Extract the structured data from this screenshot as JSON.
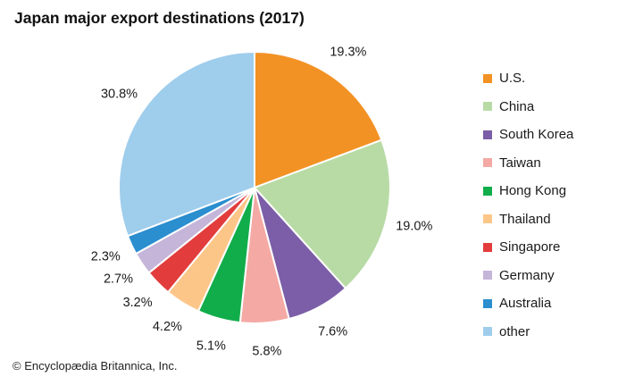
{
  "chart_data": {
    "type": "pie",
    "title": "Japan major export destinations (2017)",
    "categories": [
      "U.S.",
      "China",
      "South Korea",
      "Taiwan",
      "Hong Kong",
      "Thailand",
      "Singapore",
      "Germany",
      "Australia",
      "other"
    ],
    "values": [
      19.3,
      19.0,
      7.6,
      5.8,
      5.1,
      4.2,
      3.2,
      2.7,
      2.3,
      30.8
    ],
    "value_labels": [
      "19.3%",
      "19.0%",
      "7.6%",
      "5.8%",
      "5.1%",
      "4.2%",
      "3.2%",
      "2.7%",
      "2.3%",
      "30.8%"
    ],
    "colors": [
      "#f39224",
      "#b8dba5",
      "#7b5ea7",
      "#f4a9a4",
      "#12ad4b",
      "#fdc689",
      "#e23c3c",
      "#c4b5d9",
      "#2a8ecf",
      "#9fcdec"
    ],
    "start_angle_deg": 0,
    "direction": "clockwise",
    "legend_position": "right"
  },
  "credit": "© Encyclopædia Britannica, Inc."
}
